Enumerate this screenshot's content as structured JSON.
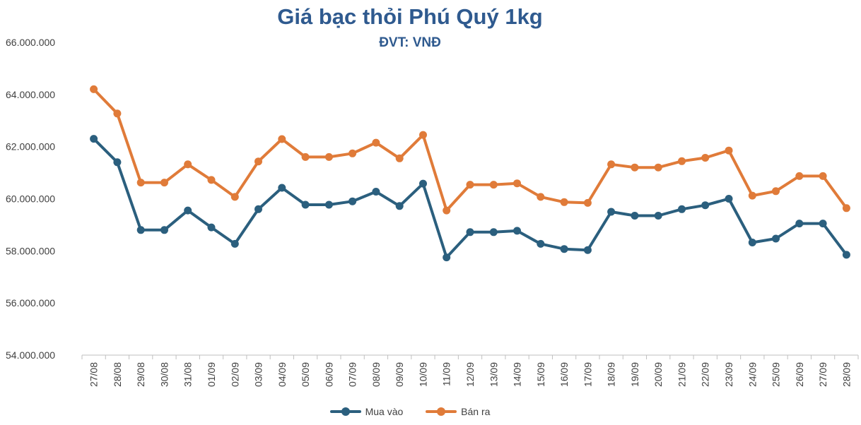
{
  "chart_data": {
    "type": "line",
    "title": "Giá bạc thỏi Phú Quý 1kg",
    "subtitle": "ĐVT: VNĐ",
    "xlabel": "",
    "ylabel": "",
    "ylim": [
      54000000,
      66000000
    ],
    "yticks": [
      54000000,
      56000000,
      58000000,
      60000000,
      62000000,
      64000000,
      66000000
    ],
    "ytick_labels": [
      "54.000.000",
      "56.000.000",
      "58.000.000",
      "60.000.000",
      "62.000.000",
      "64.000.000",
      "66.000.000"
    ],
    "grid": false,
    "legend_position": "bottom",
    "categories": [
      "27/08",
      "28/08",
      "29/08",
      "30/08",
      "31/08",
      "01/09",
      "02/09",
      "03/09",
      "04/09",
      "05/09",
      "06/09",
      "07/09",
      "08/09",
      "09/09",
      "10/09",
      "11/09",
      "12/09",
      "13/09",
      "14/09",
      "15/09",
      "16/09",
      "17/09",
      "18/09",
      "19/09",
      "20/09",
      "21/09",
      "22/09",
      "23/09",
      "24/09",
      "25/09",
      "26/09",
      "27/09",
      "28/09"
    ],
    "series": [
      {
        "name": "Mua vào",
        "color": "#2b5f7e",
        "values": [
          62300000,
          61400000,
          58800000,
          58800000,
          59550000,
          58900000,
          58270000,
          59600000,
          60420000,
          59770000,
          59770000,
          59900000,
          60270000,
          59720000,
          60580000,
          57750000,
          58720000,
          58720000,
          58770000,
          58270000,
          58070000,
          58030000,
          59500000,
          59350000,
          59350000,
          59600000,
          59750000,
          60000000,
          58320000,
          58470000,
          59050000,
          59050000,
          57850000
        ]
      },
      {
        "name": "Bán ra",
        "color": "#e07b39",
        "values": [
          64200000,
          63270000,
          60620000,
          60620000,
          61320000,
          60720000,
          60070000,
          61430000,
          62290000,
          61600000,
          61600000,
          61740000,
          62150000,
          61550000,
          62450000,
          59550000,
          60540000,
          60540000,
          60590000,
          60070000,
          59870000,
          59840000,
          61320000,
          61200000,
          61200000,
          61440000,
          61570000,
          61850000,
          60120000,
          60290000,
          60870000,
          60870000,
          59640000
        ]
      }
    ]
  }
}
